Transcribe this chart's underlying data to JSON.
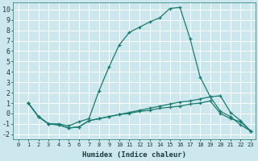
{
  "xlabel": "Humidex (Indice chaleur)",
  "bg_color": "#cce8ee",
  "grid_color": "#ffffff",
  "line_color": "#1a7a6e",
  "xlim": [
    -0.5,
    23.5
  ],
  "ylim": [
    -2.5,
    10.7
  ],
  "xticks": [
    0,
    1,
    2,
    3,
    4,
    5,
    6,
    7,
    8,
    9,
    10,
    11,
    12,
    13,
    14,
    15,
    16,
    17,
    18,
    19,
    20,
    21,
    22,
    23
  ],
  "yticks": [
    -2,
    -1,
    0,
    1,
    2,
    3,
    4,
    5,
    6,
    7,
    8,
    9,
    10
  ],
  "lines": [
    {
      "x": [
        1,
        2,
        3,
        4,
        5,
        6,
        7,
        8,
        9,
        10,
        11,
        12,
        13,
        14,
        15,
        16,
        17,
        18,
        19,
        20,
        21,
        22,
        23
      ],
      "y": [
        1.0,
        -0.3,
        -1.0,
        -1.0,
        -1.2,
        -0.8,
        -0.5,
        2.2,
        4.5,
        6.6,
        7.8,
        8.3,
        8.8,
        9.2,
        10.1,
        10.2,
        7.2,
        3.5,
        1.6,
        0.2,
        -0.3,
        -1.1,
        -1.7
      ]
    },
    {
      "x": [
        1,
        2,
        3,
        4,
        5,
        6,
        7,
        8,
        9,
        10,
        11,
        12,
        13,
        14,
        15,
        16,
        17,
        18,
        19,
        20,
        21,
        22,
        23
      ],
      "y": [
        1.0,
        -0.3,
        -1.0,
        -1.1,
        -1.4,
        -1.3,
        -0.7,
        -0.5,
        -0.3,
        -0.1,
        0.1,
        0.3,
        0.5,
        0.7,
        0.9,
        1.1,
        1.2,
        1.4,
        1.6,
        1.7,
        0.1,
        -0.7,
        -1.7
      ]
    },
    {
      "x": [
        1,
        2,
        3,
        4,
        5,
        6,
        7,
        8,
        9,
        10,
        11,
        12,
        13,
        14,
        15,
        16,
        17,
        18,
        19,
        20,
        21,
        22,
        23
      ],
      "y": [
        1.0,
        -0.3,
        -1.0,
        -1.1,
        -1.4,
        -1.3,
        -0.7,
        -0.5,
        -0.3,
        -0.1,
        0.0,
        0.2,
        0.3,
        0.5,
        0.6,
        0.7,
        0.9,
        1.0,
        1.2,
        0.0,
        -0.5,
        -0.8,
        -1.7
      ]
    }
  ]
}
